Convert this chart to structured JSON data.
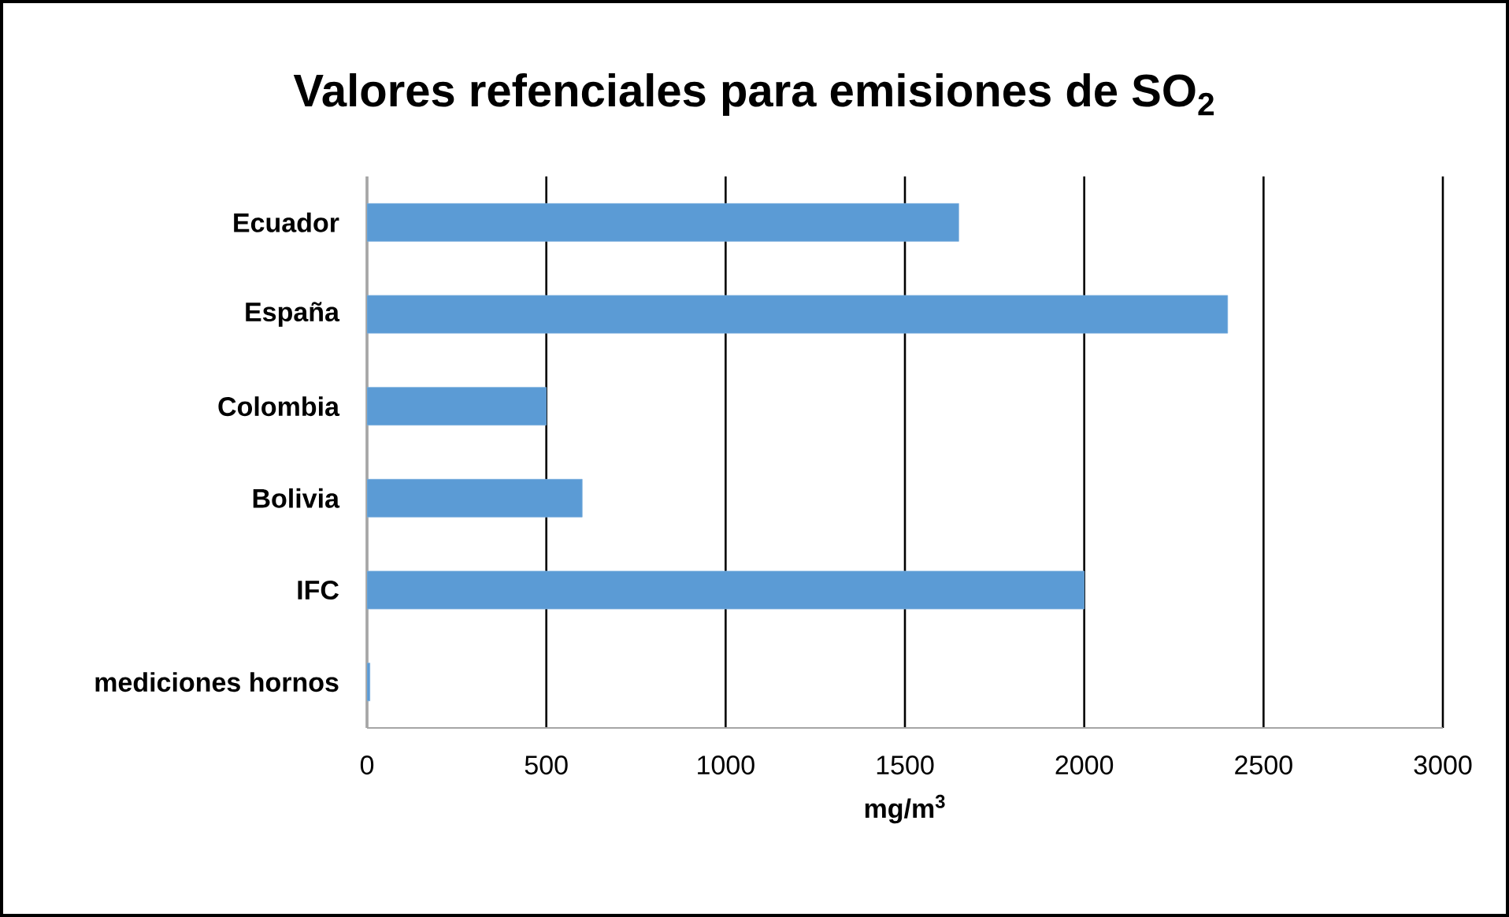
{
  "chart_data": {
    "type": "bar",
    "orientation": "horizontal",
    "title": "Valores refenciales para emisiones de SO$_{2}$",
    "xlabel": "mg/m$^{3}$",
    "categories": [
      "Ecuador",
      "España",
      "Colombia",
      "Bolivia",
      "IFC",
      "mediciones hornos"
    ],
    "values": [
      1650,
      2400,
      500,
      600,
      2000,
      8
    ],
    "color": "#5b9bd5",
    "xlim": [
      0,
      3000
    ],
    "xticks": [
      0,
      500,
      1000,
      1500,
      2000,
      2500,
      3000
    ],
    "grid": "x"
  }
}
